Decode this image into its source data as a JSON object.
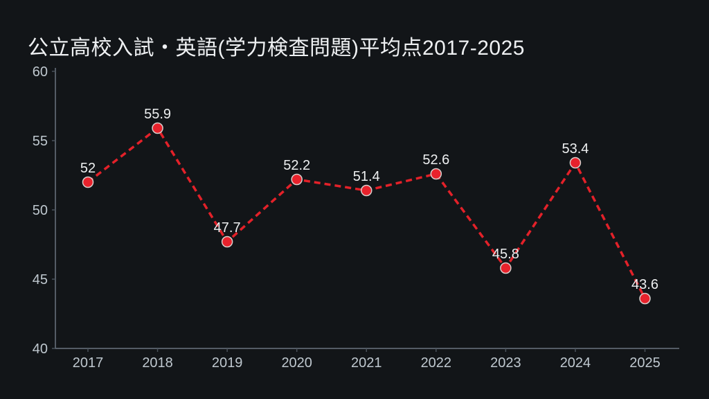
{
  "title": "公立高校入試・英語(学力検査問題)平均点2017-2025",
  "colors": {
    "background": "#121518",
    "title_text": "#eff1f3",
    "axis_line": "#6b7580",
    "axis_tick": "#49515a",
    "axis_label": "#bfc8cf",
    "line": "#e32129",
    "marker_fill": "#e8222c",
    "marker_stroke": "#d9cfcc",
    "data_label": "#eef0f1"
  },
  "chart_data": {
    "type": "line",
    "title": "公立高校入試・英語(学力検査問題)平均点2017-2025",
    "categories": [
      "2017",
      "2018",
      "2019",
      "2020",
      "2021",
      "2022",
      "2023",
      "2024",
      "2025"
    ],
    "values": [
      52,
      55.9,
      47.7,
      52.2,
      51.4,
      52.6,
      45.8,
      53.4,
      43.6
    ],
    "series_name": "平均点",
    "xlabel": "",
    "ylabel": "",
    "ylim": [
      40,
      60
    ],
    "yticks": [
      40,
      45,
      50,
      55,
      60
    ],
    "grid": false,
    "legend": false,
    "line_style": "dashed",
    "marker": "circle"
  }
}
